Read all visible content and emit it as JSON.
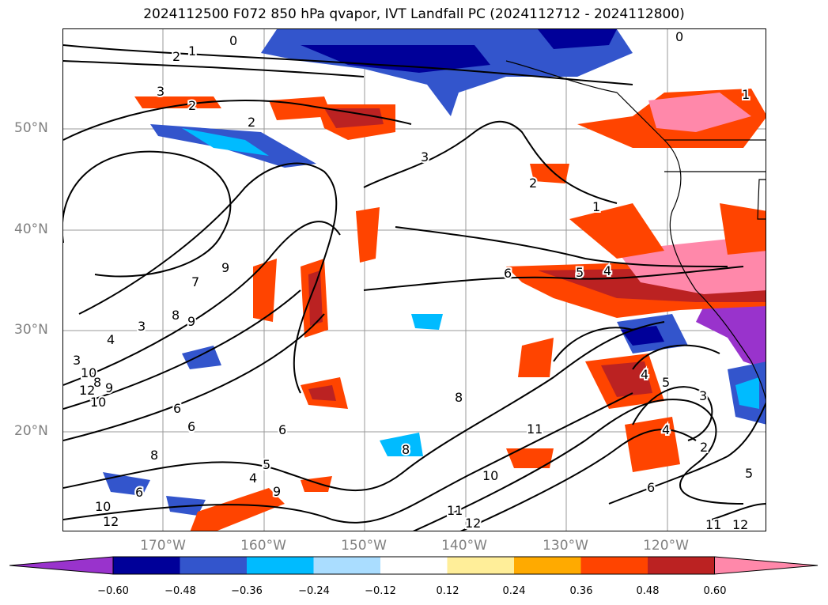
{
  "title": "2024112500 F072 850 hPa qvapor, IVT Landfall PC (2024112712 - 2024112800)",
  "lat_labels": [
    "50°N",
    "40°N",
    "30°N",
    "20°N"
  ],
  "lon_labels": [
    "170°W",
    "160°W",
    "150°W",
    "140°W",
    "130°W",
    "120°W"
  ],
  "colorbar": {
    "ticks": [
      "−0.60",
      "−0.48",
      "−0.36",
      "−0.24",
      "−0.12",
      "0.12",
      "0.24",
      "0.36",
      "0.48",
      "0.60"
    ],
    "colors": [
      "#9933cc",
      "#000099",
      "#3355cc",
      "#00bbff",
      "#aaddff",
      "#ffffff",
      "#ffee99",
      "#ffaa00",
      "#ff4400",
      "#bb2222",
      "#ff88aa"
    ],
    "extend": "both"
  },
  "contour_labels": [
    {
      "text": "0"
    },
    {
      "text": "1"
    },
    {
      "text": "2"
    },
    {
      "text": "3"
    },
    {
      "text": "2"
    },
    {
      "text": "2"
    },
    {
      "text": "0"
    },
    {
      "text": "1"
    },
    {
      "text": "3"
    },
    {
      "text": "2"
    },
    {
      "text": "1"
    },
    {
      "text": "6"
    },
    {
      "text": "5"
    },
    {
      "text": "4"
    },
    {
      "text": "7"
    },
    {
      "text": "9"
    },
    {
      "text": "8"
    },
    {
      "text": "9"
    },
    {
      "text": "3"
    },
    {
      "text": "4"
    },
    {
      "text": "3"
    },
    {
      "text": "10"
    },
    {
      "text": "8"
    },
    {
      "text": "9"
    },
    {
      "text": "12"
    },
    {
      "text": "10"
    },
    {
      "text": "6"
    },
    {
      "text": "6"
    },
    {
      "text": "6"
    },
    {
      "text": "8"
    },
    {
      "text": "5"
    },
    {
      "text": "4"
    },
    {
      "text": "9"
    },
    {
      "text": "6"
    },
    {
      "text": "10"
    },
    {
      "text": "12"
    },
    {
      "text": "8"
    },
    {
      "text": "8"
    },
    {
      "text": "11"
    },
    {
      "text": "10"
    },
    {
      "text": "11"
    },
    {
      "text": "12"
    },
    {
      "text": "4"
    },
    {
      "text": "5"
    },
    {
      "text": "4"
    },
    {
      "text": "3"
    },
    {
      "text": "2"
    },
    {
      "text": "6"
    },
    {
      "text": "11"
    },
    {
      "text": "12"
    },
    {
      "text": "5"
    }
  ]
}
